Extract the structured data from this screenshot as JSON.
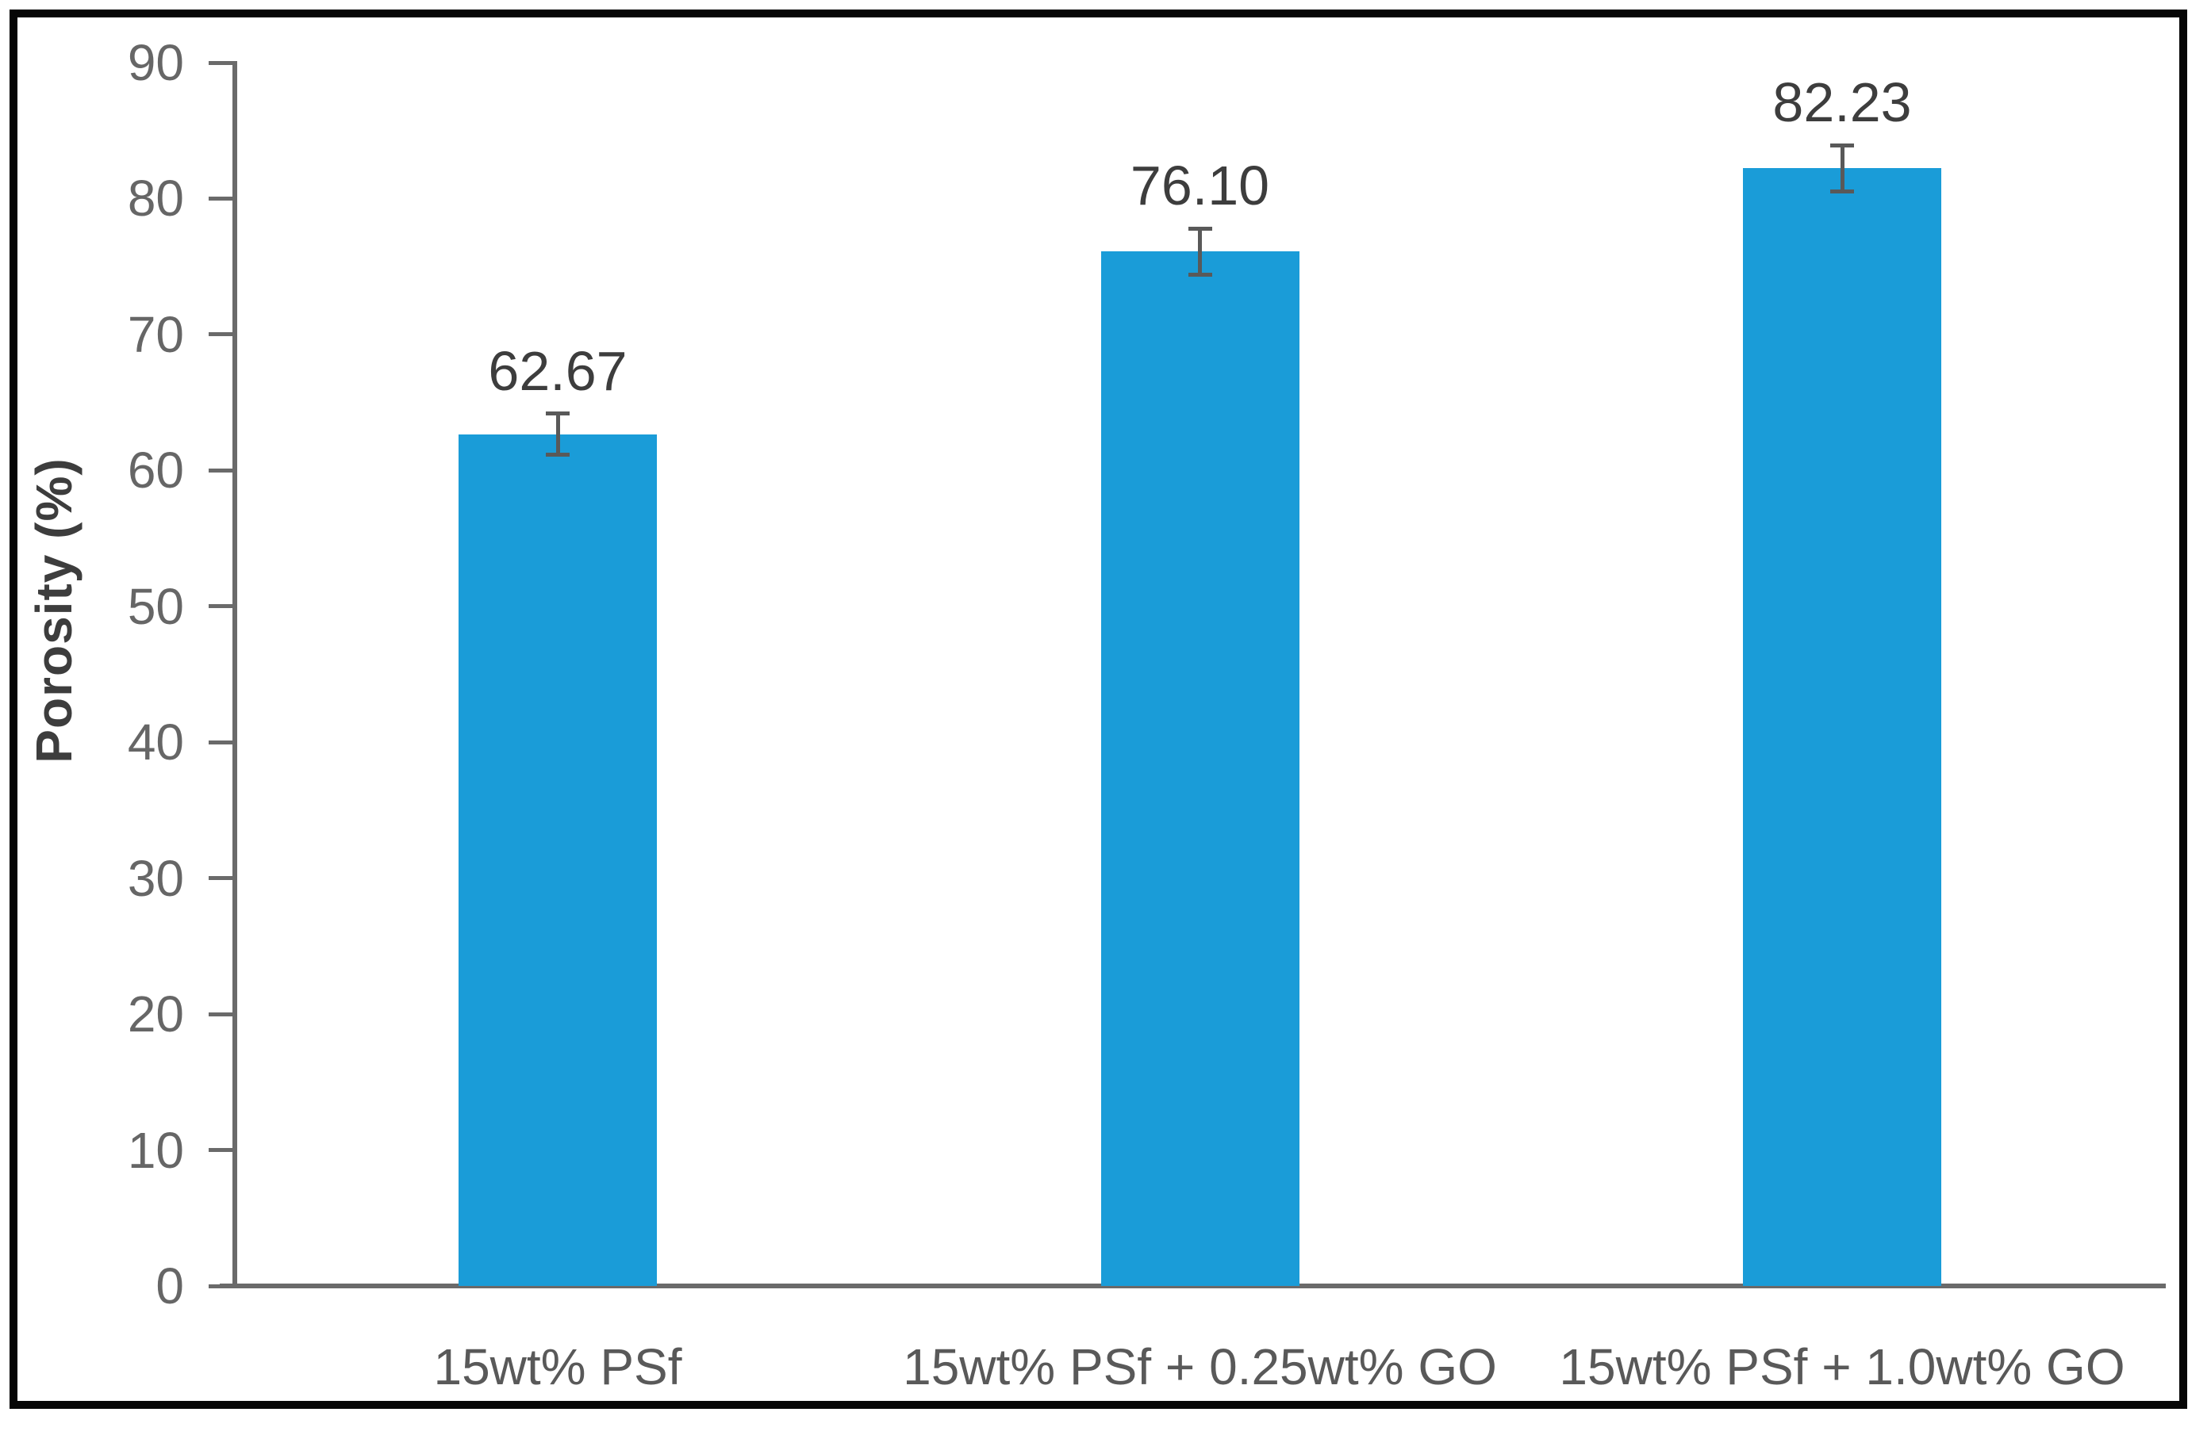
{
  "figure": {
    "description": "Bar chart of membrane porosity for PSf and PSf/GO compositions",
    "border_color": "#060606",
    "background_color": "#ffffff"
  },
  "chart_data": {
    "type": "bar",
    "title": "",
    "xlabel": "",
    "ylabel": "Porosity (%)",
    "categories": [
      "15wt% PSf",
      "15wt% PSf + 0.25wt% GO",
      "15wt% PSf + 1.0wt% GO"
    ],
    "values": [
      62.67,
      76.1,
      82.23
    ],
    "value_labels": [
      "62.67",
      "76.10",
      "82.23"
    ],
    "error_bars": [
      1.5,
      1.7,
      1.7
    ],
    "ylim": [
      0,
      90
    ],
    "yticks": [
      0,
      10,
      20,
      30,
      40,
      50,
      60,
      70,
      80,
      90
    ],
    "grid": false,
    "legend_position": "none",
    "colors": {
      "bar_fill": "#1A9CD8",
      "axis_line": "#6A6A6A",
      "tick_label": "#666666",
      "data_label": "#3D3D3D",
      "category_label": "#595959",
      "y_title": "#3D3D3D",
      "error_bar": "#595959"
    }
  }
}
